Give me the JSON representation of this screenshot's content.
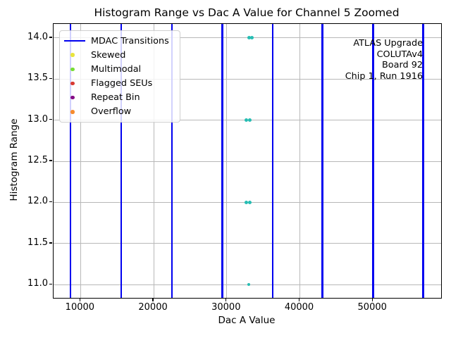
{
  "chart_data": {
    "type": "scatter",
    "title": "Histogram Range vs Dac A Value for Channel 5 Zoomed",
    "xlabel": "Dac A Value",
    "ylabel": "Histogram Range",
    "xlim": [
      6300,
      59330
    ],
    "ylim": [
      10.84,
      14.17
    ],
    "grid": true,
    "x_ticks": [
      {
        "v": 10000,
        "label": "10000"
      },
      {
        "v": 20000,
        "label": "20000"
      },
      {
        "v": 30000,
        "label": "30000"
      },
      {
        "v": 40000,
        "label": "40000"
      },
      {
        "v": 50000,
        "label": "50000"
      }
    ],
    "y_ticks": [
      {
        "v": 11.0,
        "label": "11.0"
      },
      {
        "v": 11.5,
        "label": "11.5"
      },
      {
        "v": 12.0,
        "label": "12.0"
      },
      {
        "v": 12.5,
        "label": "12.5"
      },
      {
        "v": 13.0,
        "label": "13.0"
      },
      {
        "v": 13.5,
        "label": "13.5"
      },
      {
        "v": 14.0,
        "label": "14.0"
      }
    ],
    "mdac_transitions_x": [
      8600,
      15550,
      22500,
      29400,
      36300,
      43100,
      50000,
      56900
    ],
    "series": [
      {
        "name": "histogram-range-points",
        "color": "#26bdb3",
        "points": [
          {
            "x": 33100,
            "y": 14,
            "d": 5
          },
          {
            "x": 33480,
            "y": 14,
            "d": 5
          },
          {
            "x": 32650,
            "y": 13,
            "d": 5
          },
          {
            "x": 33150,
            "y": 13,
            "d": 5
          },
          {
            "x": 32700,
            "y": 12,
            "d": 5
          },
          {
            "x": 33130,
            "y": 12,
            "d": 5
          },
          {
            "x": 33010,
            "y": 11,
            "d": 4
          }
        ]
      }
    ],
    "legend": {
      "position": "upper-left",
      "entries": [
        {
          "label": "MDAC Transitions",
          "marker": "line",
          "color": "#0000f0"
        },
        {
          "label": "Skewed",
          "marker": "dot",
          "color": "#e9e43c"
        },
        {
          "label": "Multimodal",
          "marker": "dot",
          "color": "#77dd34"
        },
        {
          "label": "Flagged SEUs",
          "marker": "dot",
          "color": "#d83a33"
        },
        {
          "label": "Repeat Bin",
          "marker": "dot",
          "color": "#850c86"
        },
        {
          "label": "Overflow",
          "marker": "dot",
          "color": "#f68b2d"
        }
      ]
    },
    "annotation": {
      "lines": [
        "ATLAS Upgrade",
        "COLUTAv4",
        "Board 92",
        "Chip 1, Run 1916"
      ]
    },
    "colors": {
      "mdac_line": "#0000f0",
      "scatter": "#26bdb3",
      "grid": "#b8b8b8"
    }
  }
}
